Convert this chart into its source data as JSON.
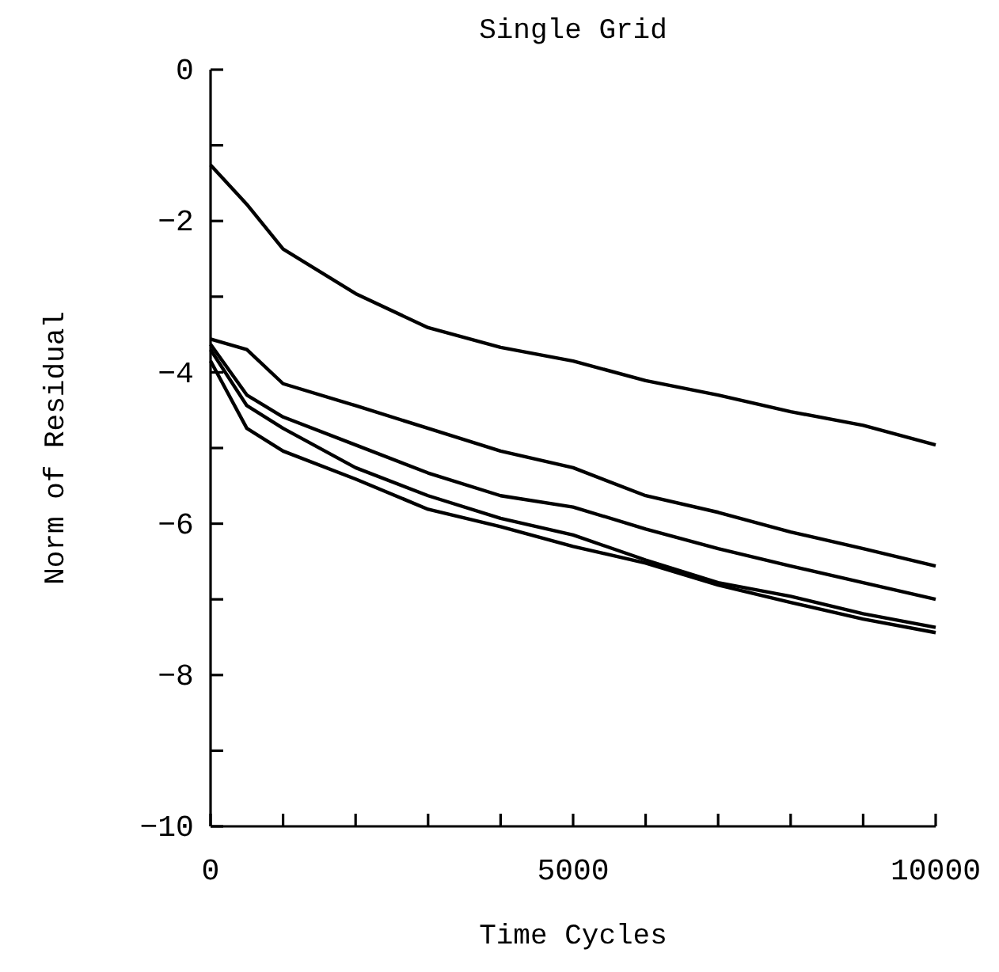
{
  "chart_data": {
    "type": "line",
    "title": "Single Grid",
    "xlabel": "Time Cycles",
    "ylabel": "Norm of Residual",
    "x": [
      0,
      500,
      1000,
      2000,
      3000,
      4000,
      5000,
      6000,
      7000,
      8000,
      9000,
      10000
    ],
    "series": [
      {
        "color": "#000000",
        "values": [
          -1.26,
          -1.78,
          -2.37,
          -2.96,
          -3.41,
          -3.67,
          -3.85,
          -4.11,
          -4.3,
          -4.52,
          -4.7,
          -4.96
        ]
      },
      {
        "color": "#000000",
        "values": [
          -3.56,
          -3.7,
          -4.15,
          -4.44,
          -4.74,
          -5.04,
          -5.26,
          -5.63,
          -5.85,
          -6.11,
          -6.33,
          -6.56
        ]
      },
      {
        "color": "#000000",
        "values": [
          -3.63,
          -4.3,
          -4.59,
          -4.96,
          -5.33,
          -5.63,
          -5.78,
          -6.07,
          -6.33,
          -6.56,
          -6.78,
          -7.0
        ]
      },
      {
        "color": "#000000",
        "values": [
          -3.7,
          -4.44,
          -4.74,
          -5.26,
          -5.63,
          -5.93,
          -6.15,
          -6.48,
          -6.78,
          -6.96,
          -7.19,
          -7.37
        ]
      },
      {
        "color": "#000000",
        "values": [
          -3.85,
          -4.74,
          -5.04,
          -5.41,
          -5.81,
          -6.04,
          -6.3,
          -6.52,
          -6.81,
          -7.04,
          -7.26,
          -7.44
        ]
      }
    ],
    "xlim": [
      0,
      10000
    ],
    "ylim": [
      -10,
      0
    ],
    "xticks": [
      0,
      {
        "value": 1000,
        "label": null
      },
      {
        "value": 2000,
        "label": null
      },
      {
        "value": 3000,
        "label": null
      },
      {
        "value": 4000,
        "label": null
      },
      5000,
      {
        "value": 6000,
        "label": null
      },
      {
        "value": 7000,
        "label": null
      },
      {
        "value": 8000,
        "label": null
      },
      {
        "value": 9000,
        "label": null
      },
      10000
    ],
    "yticks": [
      -10,
      {
        "value": -9,
        "label": null
      },
      -8,
      {
        "value": -7,
        "label": null
      },
      -6,
      {
        "value": -5,
        "label": null
      },
      -4,
      {
        "value": -3,
        "label": null
      },
      -2,
      {
        "value": -1,
        "label": null
      },
      0
    ],
    "marker": "none",
    "line_style": "solid"
  }
}
